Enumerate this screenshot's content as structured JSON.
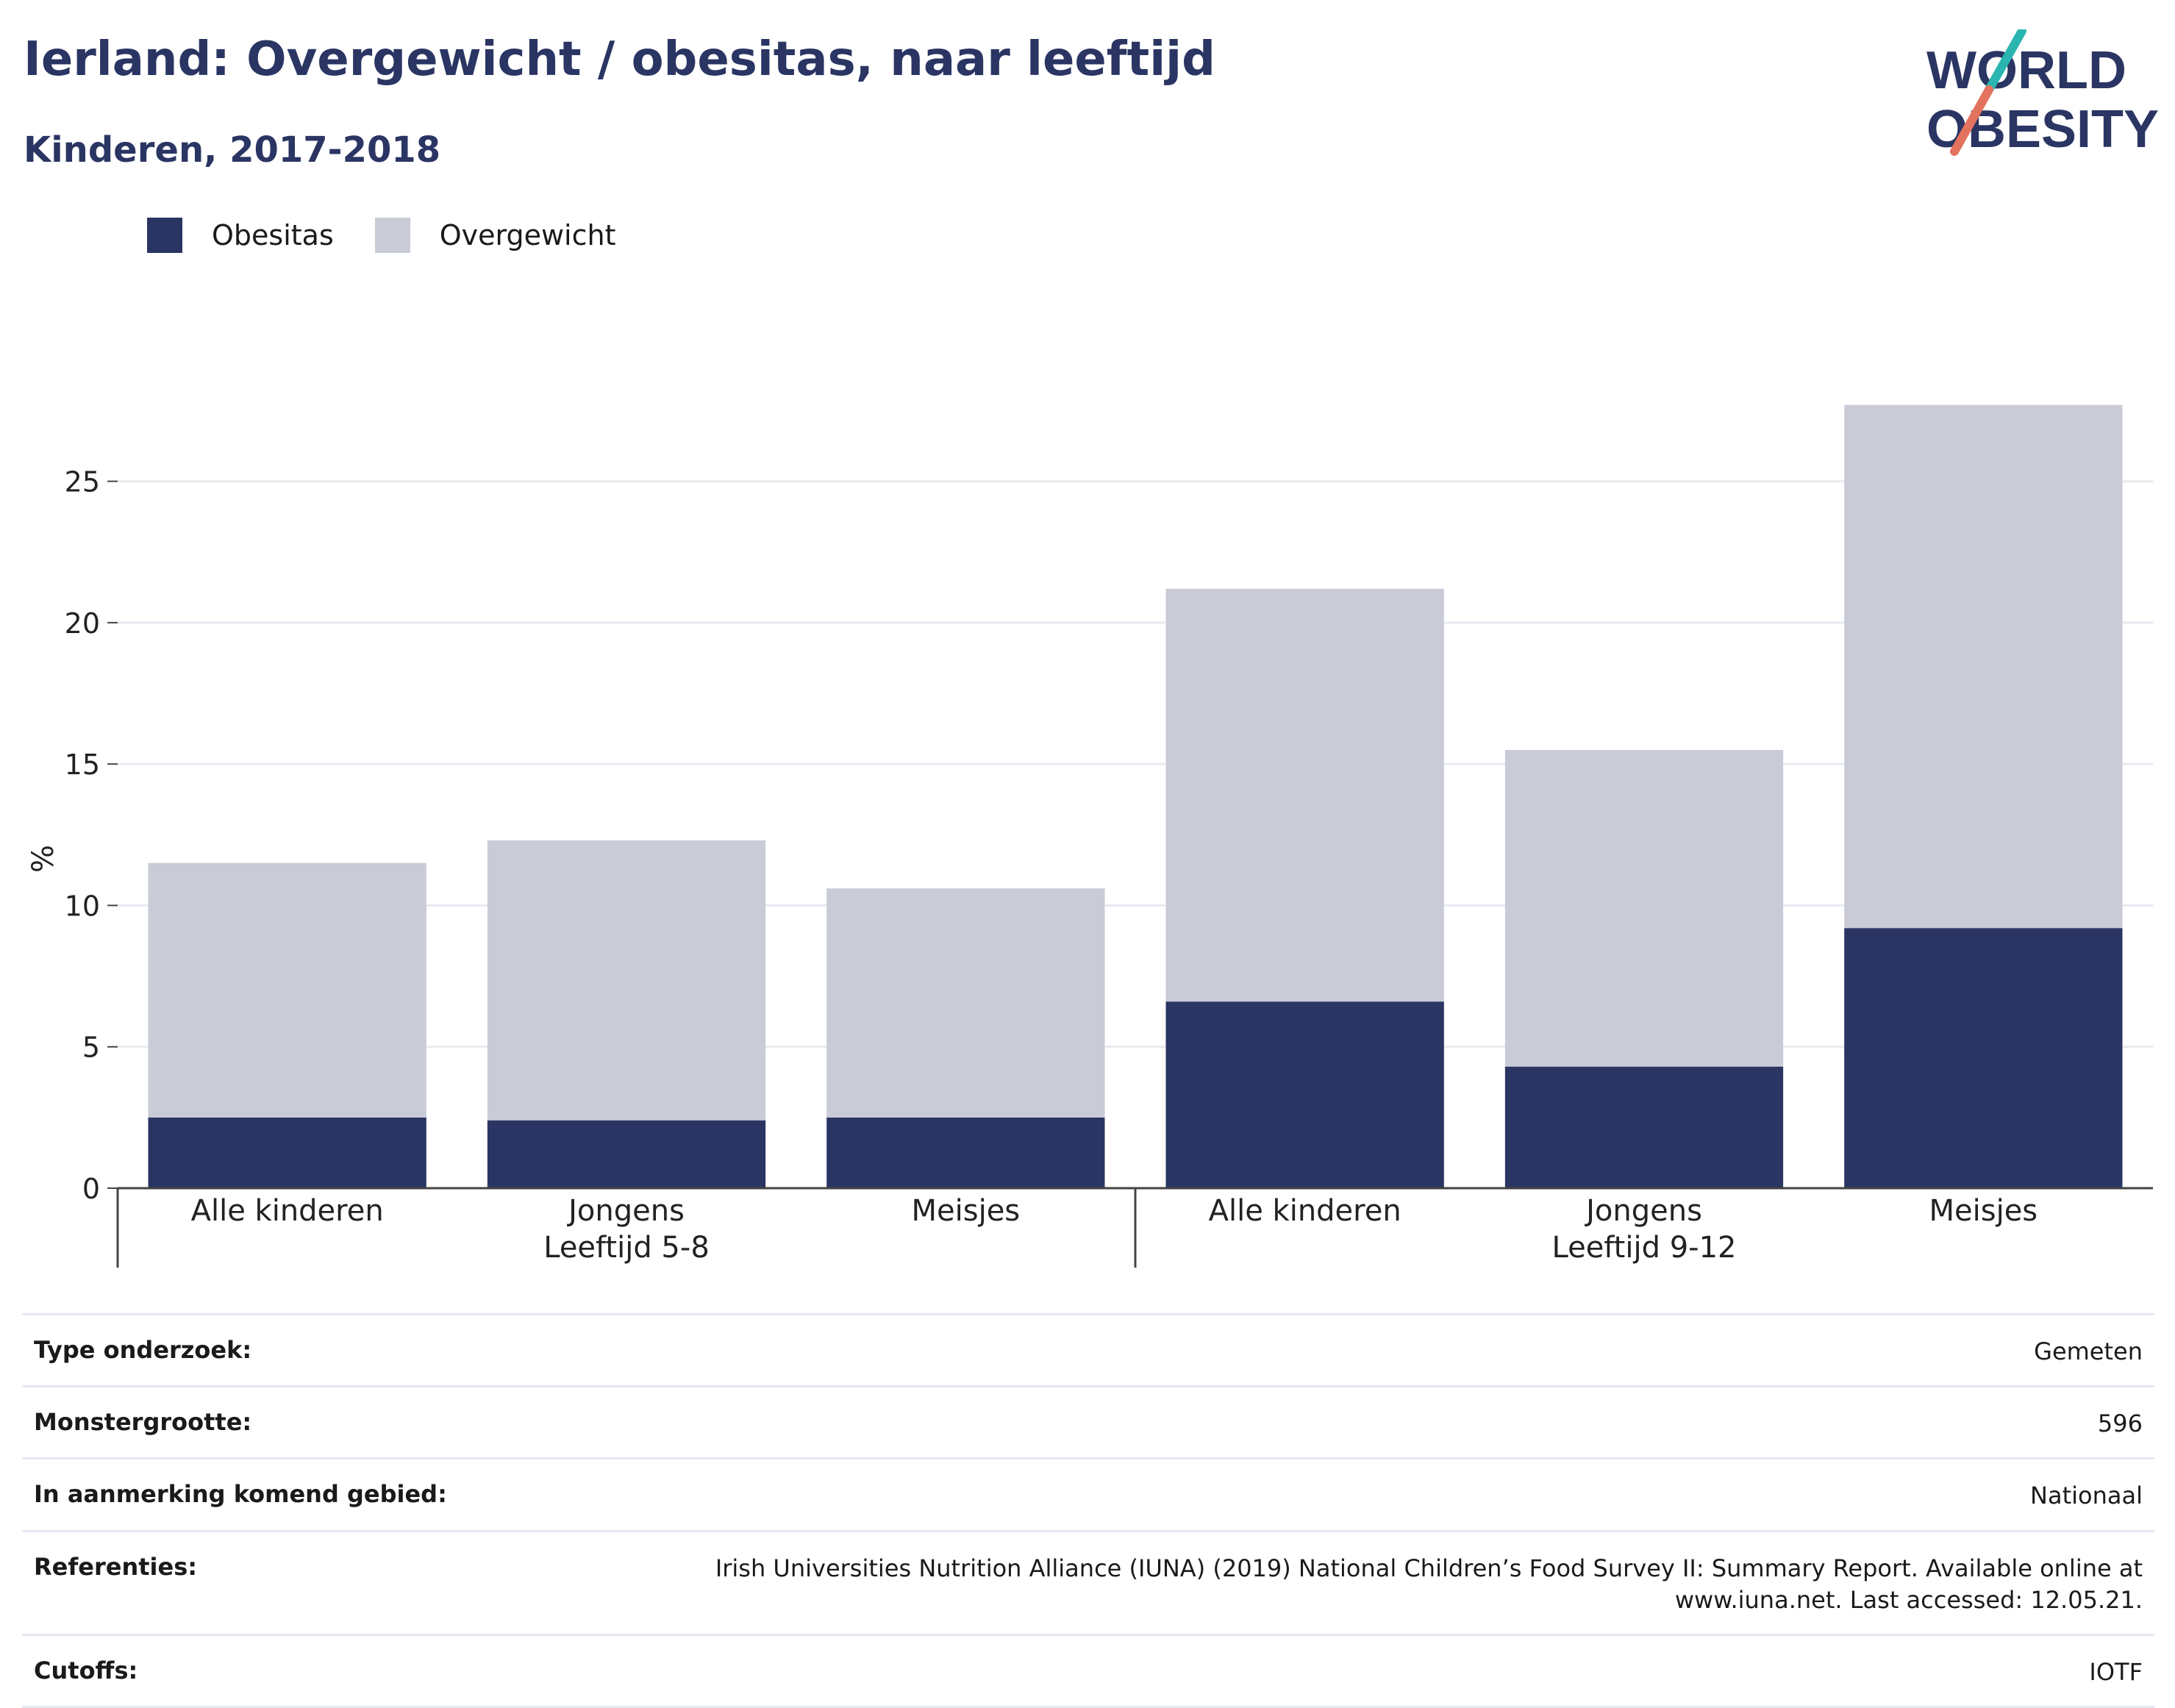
{
  "header": {
    "title": "Ierland: Overgewicht / obesitas, naar leeftijd",
    "subtitle": "Kinderen, 2017-2018"
  },
  "logo": {
    "line1": "WORLD",
    "line2": "OBESITY",
    "colors": {
      "text": "#2a3563",
      "slash_top": "#2bb5b0",
      "slash_bottom": "#e3735e"
    }
  },
  "legend": [
    {
      "label": "Obesitas",
      "color": "#2a3563"
    },
    {
      "label": "Overgewicht",
      "color": "#c9cbd7"
    }
  ],
  "chart_data": {
    "type": "bar",
    "stacked": true,
    "ylabel": "%",
    "ylim": [
      0,
      28.5
    ],
    "yticks": [
      0,
      5,
      10,
      15,
      20,
      25
    ],
    "grid": true,
    "legend_position": "top-left",
    "categories": [
      "Alle kinderen",
      "Jongens",
      "Meisjes",
      "Alle kinderen",
      "Jongens",
      "Meisjes"
    ],
    "groups": [
      {
        "label": "Leeftijd 5-8",
        "size": 3
      },
      {
        "label": "Leeftijd 9-12",
        "size": 3
      }
    ],
    "series": [
      {
        "name": "Obesitas",
        "color": "#2a3563",
        "values": [
          2.5,
          2.4,
          2.5,
          6.6,
          4.3,
          9.2
        ]
      },
      {
        "name": "Overgewicht",
        "color": "#c9cbd7",
        "values": [
          9.0,
          9.9,
          8.1,
          14.6,
          11.2,
          18.5
        ]
      }
    ]
  },
  "info": [
    {
      "key": "Type onderzoek:",
      "value": [
        "Gemeten"
      ]
    },
    {
      "key": "Monstergrootte:",
      "value": [
        "596"
      ]
    },
    {
      "key": "In aanmerking komend gebied:",
      "value": [
        "Nationaal"
      ]
    },
    {
      "key": "Referenties:",
      "value": [
        "Irish Universities Nutrition Alliance (IUNA) (2019) National Children’s Food Survey II: Summary Report. Available online at",
        "www.iuna.net. Last accessed: 12.05.21."
      ]
    },
    {
      "key": "Cutoffs:",
      "value": [
        "IOTF"
      ]
    }
  ]
}
